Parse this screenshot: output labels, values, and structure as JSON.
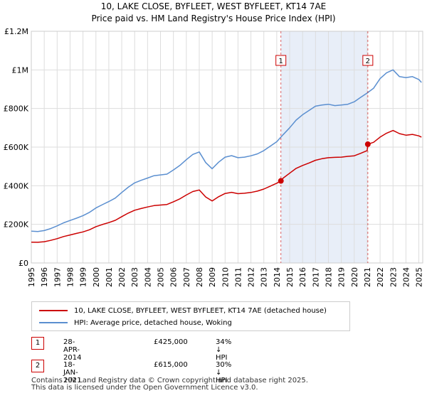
{
  "title": "10, LAKE CLOSE, BYFLEET, WEST BYFLEET, KT14 7AE",
  "subtitle": "Price paid vs. HM Land Registry's House Price Index (HPI)",
  "colors": {
    "property": "#cc0000",
    "hpi": "#5b8fd0",
    "shade": "#e8eef8",
    "grid": "#dddddd",
    "marker_line": "#cc0000"
  },
  "legend": {
    "property_label": "10, LAKE CLOSE, BYFLEET, WEST BYFLEET, KT14 7AE (detached house)",
    "hpi_label": "HPI: Average price, detached house, Woking"
  },
  "transactions": [
    {
      "num": "1",
      "date": "28-APR-2014",
      "price": "£425,000",
      "hpi_diff": "34% ↓ HPI"
    },
    {
      "num": "2",
      "date": "18-JAN-2021",
      "price": "£615,000",
      "hpi_diff": "30% ↓ HPI"
    }
  ],
  "footer": {
    "line1": "Contains HM Land Registry data © Crown copyright and database right 2025.",
    "line2": "This data is licensed under the Open Government Licence v3.0."
  },
  "chart_data": {
    "type": "line",
    "title": "10, LAKE CLOSE, BYFLEET, WEST BYFLEET, KT14 7AE",
    "subtitle": "Price paid vs. HM Land Registry's House Price Index (HPI)",
    "xlim": [
      1995,
      2025.3
    ],
    "ylim": [
      0,
      1200000
    ],
    "x_ticks": [
      1995,
      1996,
      1997,
      1998,
      1999,
      2000,
      2001,
      2002,
      2003,
      2004,
      2005,
      2006,
      2007,
      2008,
      2009,
      2010,
      2011,
      2012,
      2013,
      2014,
      2015,
      2016,
      2017,
      2018,
      2019,
      2020,
      2021,
      2022,
      2023,
      2024,
      2025
    ],
    "y_ticks": [
      {
        "value": 0,
        "label": "£0"
      },
      {
        "value": 200000,
        "label": "£200K"
      },
      {
        "value": 400000,
        "label": "£400K"
      },
      {
        "value": 600000,
        "label": "£600K"
      },
      {
        "value": 800000,
        "label": "£800K"
      },
      {
        "value": 1000000,
        "label": "£1M"
      },
      {
        "value": 1200000,
        "label": "£1.2M"
      }
    ],
    "grid": true,
    "shaded_range": [
      2014.32,
      2021.05
    ],
    "series": [
      {
        "name": "HPI: Average price, detached house, Woking",
        "color": "#5b8fd0",
        "x": [
          1995,
          1995.5,
          1996,
          1996.5,
          1997,
          1997.5,
          1998,
          1998.5,
          1999,
          1999.5,
          2000,
          2000.5,
          2001,
          2001.5,
          2002,
          2002.5,
          2003,
          2003.5,
          2004,
          2004.5,
          2005,
          2005.5,
          2006,
          2006.5,
          2007,
          2007.5,
          2008,
          2008.5,
          2009,
          2009.5,
          2010,
          2010.5,
          2011,
          2011.5,
          2012,
          2012.5,
          2013,
          2013.5,
          2014,
          2014.5,
          2015,
          2015.5,
          2016,
          2016.5,
          2017,
          2017.5,
          2018,
          2018.5,
          2019,
          2019.5,
          2020,
          2020.5,
          2021,
          2021.5,
          2022,
          2022.5,
          2023,
          2023.5,
          2024,
          2024.5,
          2025,
          2025.2
        ],
        "y": [
          165000,
          163000,
          168000,
          178000,
          192000,
          208000,
          220000,
          232000,
          245000,
          262000,
          285000,
          302000,
          318000,
          336000,
          365000,
          392000,
          415000,
          428000,
          440000,
          452000,
          456000,
          460000,
          482000,
          505000,
          535000,
          562000,
          575000,
          520000,
          488000,
          522000,
          548000,
          556000,
          545000,
          548000,
          555000,
          565000,
          582000,
          605000,
          628000,
          665000,
          700000,
          740000,
          768000,
          790000,
          812000,
          818000,
          822000,
          815000,
          818000,
          822000,
          835000,
          858000,
          880000,
          905000,
          955000,
          985000,
          1000000,
          965000,
          960000,
          965000,
          950000,
          935000
        ]
      },
      {
        "name": "10, LAKE CLOSE, BYFLEET, WEST BYFLEET, KT14 7AE (detached house)",
        "color": "#cc0000",
        "x": [
          1995,
          1995.5,
          1996,
          1996.5,
          1997,
          1997.5,
          1998,
          1998.5,
          1999,
          1999.5,
          2000,
          2000.5,
          2001,
          2001.5,
          2002,
          2002.5,
          2003,
          2003.5,
          2004,
          2004.5,
          2005,
          2005.5,
          2006,
          2006.5,
          2007,
          2007.5,
          2008,
          2008.5,
          2009,
          2009.5,
          2010,
          2010.5,
          2011,
          2011.5,
          2012,
          2012.5,
          2013,
          2013.5,
          2014,
          2014.32,
          2014.5,
          2015,
          2015.5,
          2016,
          2016.5,
          2017,
          2017.5,
          2018,
          2018.5,
          2019,
          2019.5,
          2020,
          2020.5,
          2021,
          2021.05,
          2021.5,
          2022,
          2022.5,
          2023,
          2023.5,
          2024,
          2024.5,
          2025,
          2025.2
        ],
        "y": [
          108000,
          107000,
          110000,
          117000,
          126000,
          137000,
          145000,
          153000,
          161000,
          172000,
          188000,
          199000,
          209000,
          221000,
          240000,
          258000,
          273000,
          282000,
          290000,
          297000,
          300000,
          303000,
          317000,
          332000,
          352000,
          370000,
          378000,
          342000,
          321000,
          343000,
          360000,
          366000,
          359000,
          361000,
          365000,
          372000,
          383000,
          398000,
          413000,
          425000,
          440000,
          465000,
          490000,
          505000,
          518000,
          532000,
          540000,
          545000,
          547000,
          548000,
          552000,
          555000,
          568000,
          582000,
          615000,
          625000,
          652000,
          672000,
          686000,
          670000,
          662000,
          666000,
          658000,
          652000
        ]
      }
    ],
    "sale_markers": [
      {
        "label": "1",
        "x": 2014.32,
        "y": 425000
      },
      {
        "label": "2",
        "x": 2021.05,
        "y": 615000
      }
    ]
  }
}
